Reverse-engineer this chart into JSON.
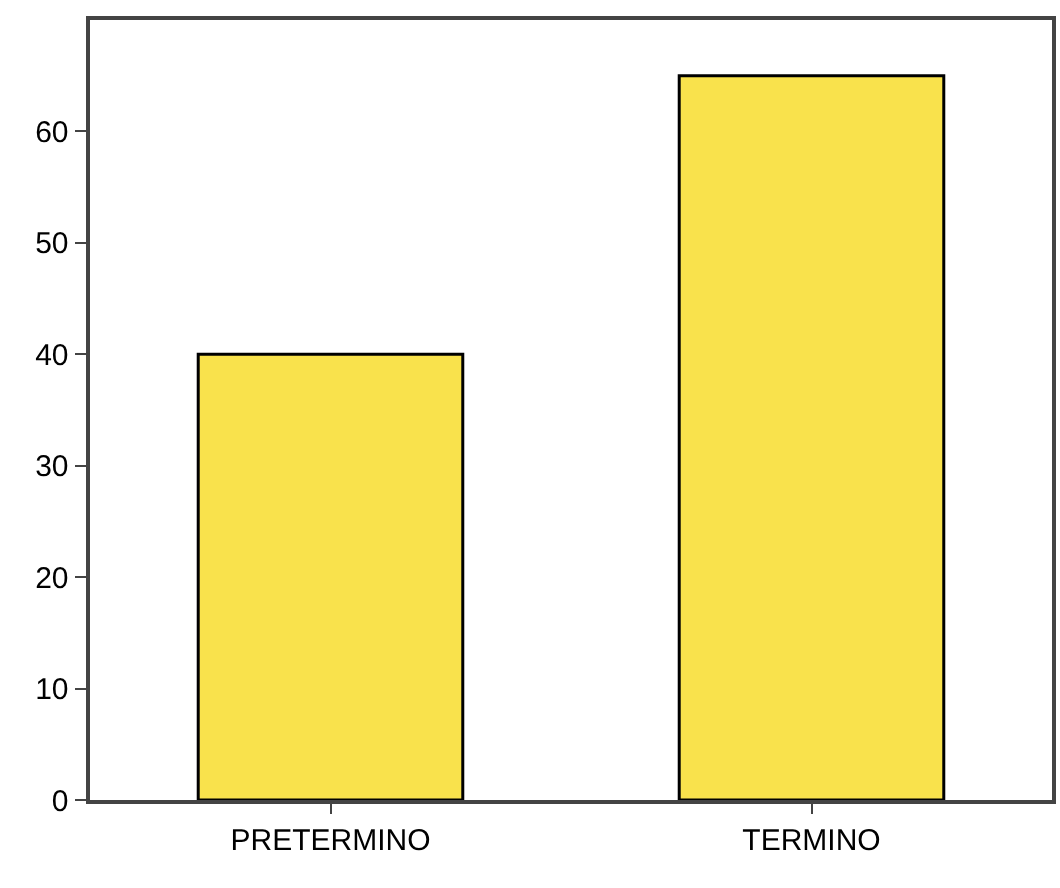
{
  "chart_data": {
    "type": "bar",
    "categories": [
      "PRETERMINO",
      "TERMINO"
    ],
    "values": [
      40,
      65
    ],
    "color": "#f9e24c",
    "ylim": [
      0,
      70
    ],
    "yticks": [
      0,
      10,
      20,
      30,
      40,
      50,
      60
    ],
    "grid": false
  }
}
